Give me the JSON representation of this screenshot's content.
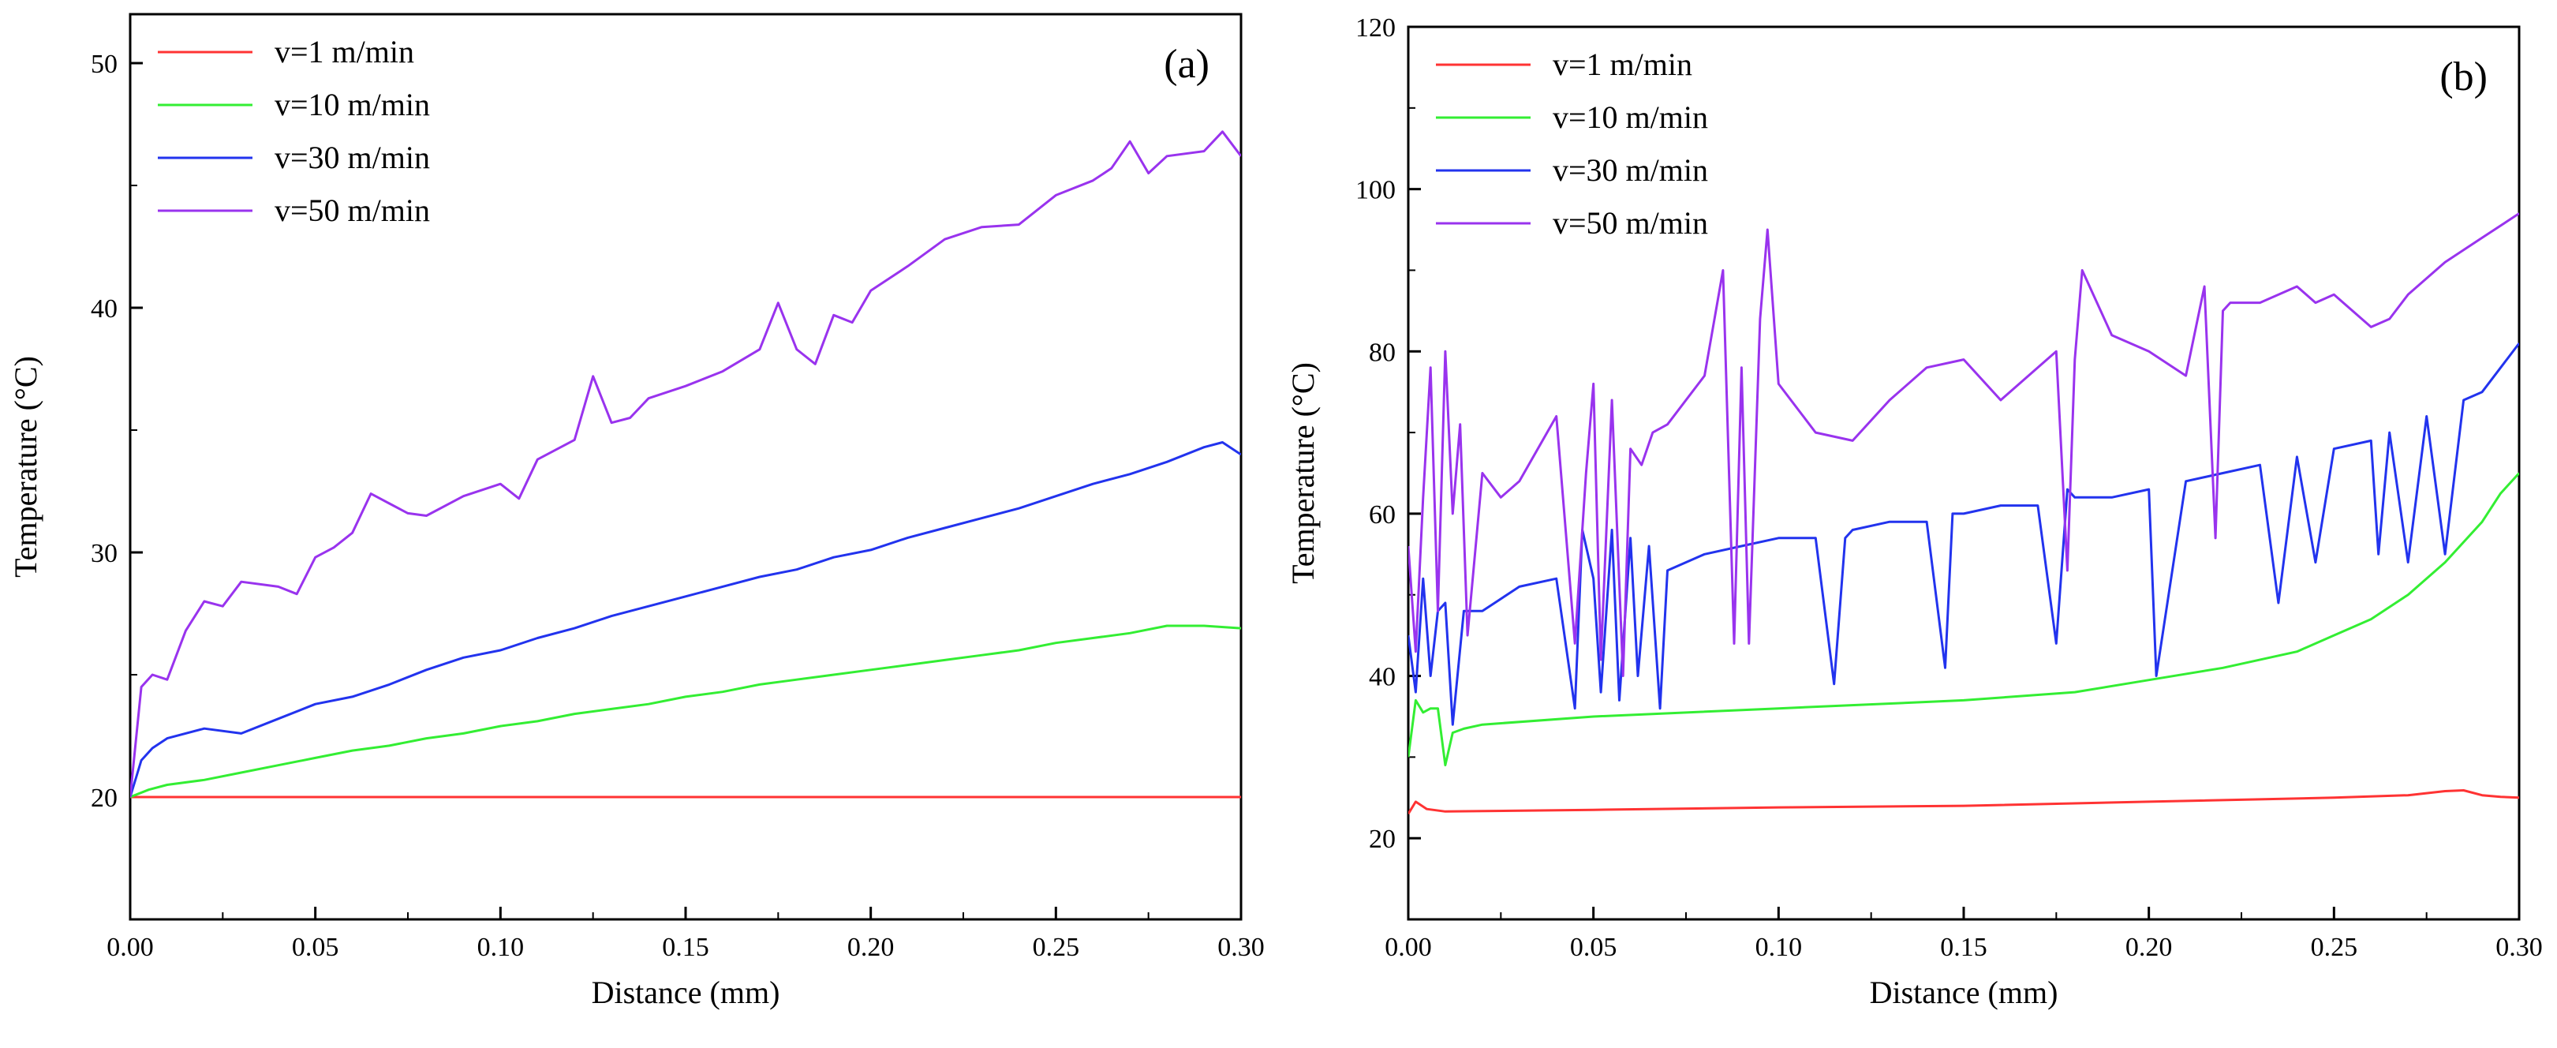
{
  "chart_data": [
    {
      "type": "line",
      "panel_label": "(a)",
      "xlabel": "Distance (mm)",
      "ylabel": "Temperature (°C)",
      "xlim": [
        0,
        0.3
      ],
      "ylim": [
        15,
        52
      ],
      "x_ticks": [
        0.0,
        0.05,
        0.1,
        0.15,
        0.2,
        0.25,
        0.3
      ],
      "x_tick_labels": [
        "0.00",
        "0.05",
        "0.10",
        "0.15",
        "0.20",
        "0.25",
        "0.30"
      ],
      "y_ticks": [
        20,
        30,
        40,
        50
      ],
      "y_tick_labels": [
        "20",
        "30",
        "40",
        "50"
      ],
      "grid": false,
      "legend_position": "top-left",
      "series": [
        {
          "name": "v=1 m/min",
          "color": "#ff3333",
          "x": [
            0,
            0.05,
            0.1,
            0.15,
            0.2,
            0.25,
            0.3
          ],
          "y": [
            20,
            20,
            20,
            20,
            20,
            20,
            20
          ]
        },
        {
          "name": "v=10 m/min",
          "color": "#33ee33",
          "x": [
            0,
            0.005,
            0.01,
            0.02,
            0.03,
            0.04,
            0.05,
            0.06,
            0.07,
            0.08,
            0.09,
            0.1,
            0.11,
            0.12,
            0.13,
            0.14,
            0.15,
            0.16,
            0.17,
            0.18,
            0.19,
            0.2,
            0.21,
            0.22,
            0.23,
            0.24,
            0.25,
            0.26,
            0.27,
            0.28,
            0.29,
            0.3
          ],
          "y": [
            20,
            20.3,
            20.5,
            20.7,
            21.0,
            21.3,
            21.6,
            21.9,
            22.1,
            22.4,
            22.6,
            22.9,
            23.1,
            23.4,
            23.6,
            23.8,
            24.1,
            24.3,
            24.6,
            24.8,
            25.0,
            25.2,
            25.4,
            25.6,
            25.8,
            26.0,
            26.3,
            26.5,
            26.7,
            27.0,
            27.0,
            26.9
          ]
        },
        {
          "name": "v=30 m/min",
          "color": "#2233ee",
          "x": [
            0,
            0.003,
            0.006,
            0.01,
            0.02,
            0.03,
            0.04,
            0.05,
            0.06,
            0.07,
            0.08,
            0.09,
            0.1,
            0.11,
            0.12,
            0.13,
            0.14,
            0.15,
            0.16,
            0.17,
            0.18,
            0.19,
            0.2,
            0.21,
            0.22,
            0.23,
            0.24,
            0.25,
            0.26,
            0.27,
            0.28,
            0.29,
            0.295,
            0.3
          ],
          "y": [
            20,
            21.5,
            22.0,
            22.4,
            22.8,
            22.6,
            23.2,
            23.8,
            24.1,
            24.6,
            25.2,
            25.7,
            26.0,
            26.5,
            26.9,
            27.4,
            27.8,
            28.2,
            28.6,
            29.0,
            29.3,
            29.8,
            30.1,
            30.6,
            31.0,
            31.4,
            31.8,
            32.3,
            32.8,
            33.2,
            33.7,
            34.3,
            34.5,
            34.0
          ]
        },
        {
          "name": "v=50 m/min",
          "color": "#9933ee",
          "x": [
            0,
            0.003,
            0.006,
            0.01,
            0.015,
            0.02,
            0.025,
            0.03,
            0.04,
            0.045,
            0.05,
            0.055,
            0.06,
            0.065,
            0.07,
            0.075,
            0.08,
            0.09,
            0.1,
            0.105,
            0.11,
            0.12,
            0.125,
            0.13,
            0.135,
            0.14,
            0.15,
            0.16,
            0.17,
            0.175,
            0.18,
            0.185,
            0.19,
            0.195,
            0.2,
            0.21,
            0.22,
            0.23,
            0.24,
            0.25,
            0.26,
            0.265,
            0.27,
            0.275,
            0.28,
            0.29,
            0.295,
            0.3
          ],
          "y": [
            20,
            24.5,
            25.0,
            24.8,
            26.8,
            28.0,
            27.8,
            28.8,
            28.6,
            28.3,
            29.8,
            30.2,
            30.8,
            32.4,
            32.0,
            31.6,
            31.5,
            32.3,
            32.8,
            32.2,
            33.8,
            34.6,
            37.2,
            35.3,
            35.5,
            36.3,
            36.8,
            37.4,
            38.3,
            40.2,
            38.3,
            37.7,
            39.7,
            39.4,
            40.7,
            41.7,
            42.8,
            43.3,
            43.4,
            44.6,
            45.2,
            45.7,
            46.8,
            45.5,
            46.2,
            46.4,
            47.2,
            46.2
          ]
        }
      ]
    },
    {
      "type": "line",
      "panel_label": "(b)",
      "xlabel": "Distance (mm)",
      "ylabel": "Temperature (°C)",
      "xlim": [
        0,
        0.3
      ],
      "ylim": [
        10,
        120
      ],
      "x_ticks": [
        0.0,
        0.05,
        0.1,
        0.15,
        0.2,
        0.25,
        0.3
      ],
      "x_tick_labels": [
        "0.00",
        "0.05",
        "0.10",
        "0.15",
        "0.20",
        "0.25",
        "0.30"
      ],
      "y_ticks": [
        20,
        40,
        60,
        80,
        100,
        120
      ],
      "y_tick_labels": [
        "20",
        "40",
        "60",
        "80",
        "100",
        "120"
      ],
      "grid": false,
      "legend_position": "top-left",
      "series": [
        {
          "name": "v=1 m/min",
          "color": "#ff3333",
          "x": [
            0,
            0.002,
            0.005,
            0.01,
            0.05,
            0.1,
            0.15,
            0.2,
            0.25,
            0.27,
            0.28,
            0.285,
            0.29,
            0.295,
            0.3
          ],
          "y": [
            23,
            24.5,
            23.6,
            23.3,
            23.5,
            23.8,
            24.0,
            24.5,
            25.0,
            25.3,
            25.8,
            25.9,
            25.3,
            25.1,
            25.0
          ]
        },
        {
          "name": "v=10 m/min",
          "color": "#33ee33",
          "x": [
            0,
            0.002,
            0.004,
            0.006,
            0.008,
            0.01,
            0.012,
            0.015,
            0.02,
            0.05,
            0.1,
            0.15,
            0.18,
            0.2,
            0.22,
            0.24,
            0.25,
            0.26,
            0.27,
            0.28,
            0.29,
            0.295,
            0.3
          ],
          "y": [
            30,
            37,
            35.5,
            36,
            36,
            29,
            33,
            33.5,
            34,
            35,
            36,
            37,
            38,
            39.5,
            41,
            43,
            45,
            47,
            50,
            54,
            59,
            62.5,
            65
          ]
        },
        {
          "name": "v=30 m/min",
          "color": "#2233ee",
          "x": [
            0,
            0.002,
            0.004,
            0.006,
            0.008,
            0.01,
            0.012,
            0.015,
            0.02,
            0.03,
            0.04,
            0.045,
            0.047,
            0.05,
            0.052,
            0.055,
            0.057,
            0.06,
            0.062,
            0.065,
            0.068,
            0.07,
            0.08,
            0.09,
            0.1,
            0.11,
            0.115,
            0.118,
            0.12,
            0.13,
            0.14,
            0.145,
            0.147,
            0.15,
            0.16,
            0.17,
            0.175,
            0.178,
            0.18,
            0.19,
            0.2,
            0.202,
            0.21,
            0.22,
            0.23,
            0.235,
            0.24,
            0.245,
            0.25,
            0.26,
            0.262,
            0.265,
            0.27,
            0.275,
            0.28,
            0.285,
            0.29,
            0.3
          ],
          "y": [
            45,
            38,
            52,
            40,
            48,
            49,
            34,
            48,
            48,
            51,
            52,
            36,
            58,
            52,
            38,
            58,
            37,
            57,
            40,
            56,
            36,
            53,
            55,
            56,
            57,
            57,
            39,
            57,
            58,
            59,
            59,
            41,
            60,
            60,
            61,
            61,
            44,
            63,
            62,
            62,
            63,
            40,
            64,
            65,
            66,
            49,
            67,
            54,
            68,
            69,
            55,
            70,
            54,
            72,
            55,
            74,
            75,
            81
          ]
        },
        {
          "name": "v=50 m/min",
          "color": "#9933ee",
          "x": [
            0,
            0.002,
            0.004,
            0.006,
            0.008,
            0.01,
            0.012,
            0.014,
            0.016,
            0.02,
            0.025,
            0.03,
            0.04,
            0.045,
            0.048,
            0.05,
            0.052,
            0.055,
            0.058,
            0.06,
            0.063,
            0.066,
            0.07,
            0.08,
            0.085,
            0.088,
            0.09,
            0.092,
            0.095,
            0.097,
            0.1,
            0.11,
            0.12,
            0.13,
            0.14,
            0.15,
            0.16,
            0.17,
            0.175,
            0.178,
            0.18,
            0.182,
            0.19,
            0.2,
            0.21,
            0.215,
            0.218,
            0.22,
            0.222,
            0.23,
            0.24,
            0.245,
            0.25,
            0.26,
            0.265,
            0.27,
            0.28,
            0.29,
            0.3
          ],
          "y": [
            56,
            43,
            62,
            78,
            48,
            80,
            60,
            71,
            45,
            65,
            62,
            64,
            72,
            44,
            65,
            76,
            42,
            74,
            40,
            68,
            66,
            70,
            71,
            77,
            90,
            44,
            78,
            44,
            84,
            95,
            76,
            70,
            69,
            74,
            78,
            79,
            74,
            78,
            80,
            53,
            79,
            90,
            82,
            80,
            77,
            88,
            57,
            85,
            86,
            86,
            88,
            86,
            87,
            83,
            84,
            87,
            91,
            94,
            97
          ]
        }
      ]
    }
  ]
}
